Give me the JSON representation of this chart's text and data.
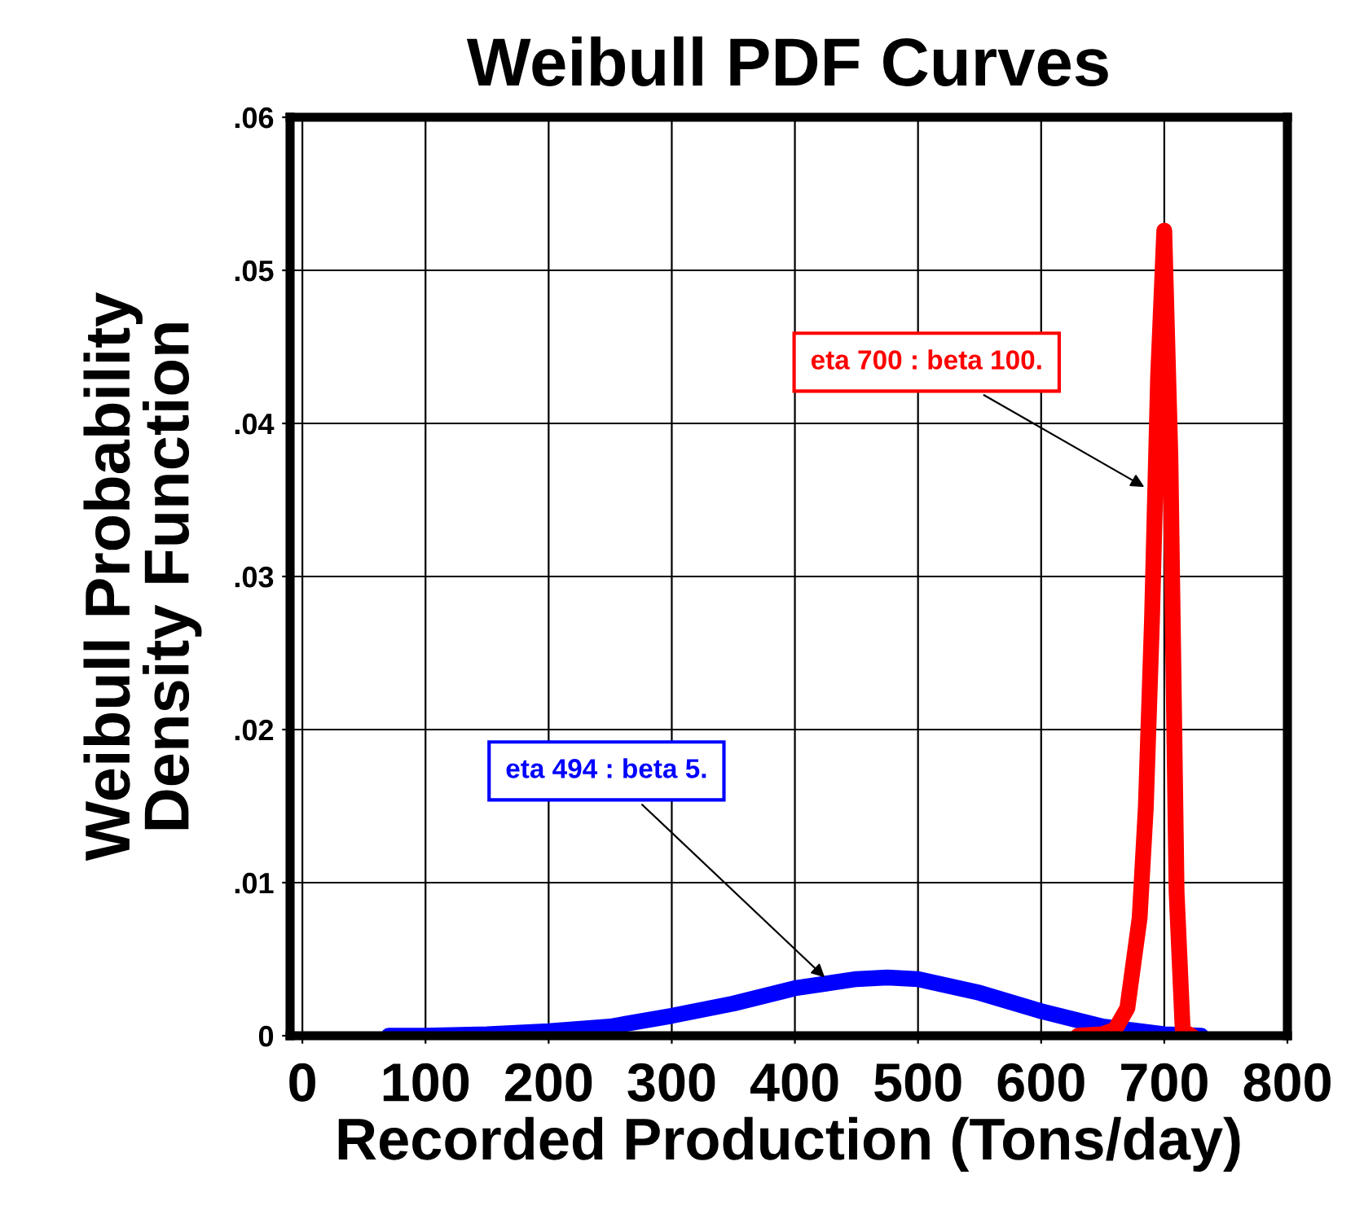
{
  "chart_data": {
    "type": "line",
    "title": "Weibull PDF Curves",
    "xlabel": "Recorded Production (Tons/day)",
    "ylabel": "Weibull Probability\nDensity Function",
    "xlim": [
      -10,
      800
    ],
    "xticks": [
      0,
      100,
      200,
      300,
      400,
      500,
      600,
      700,
      800
    ],
    "ylim": [
      0,
      0.06
    ],
    "yticks": [
      0,
      {
        "value": 0.01,
        "label": ".01"
      },
      {
        "value": 0.02,
        "label": ".02"
      },
      {
        "value": 0.03,
        "label": ".03"
      },
      {
        "value": 0.04,
        "label": ".04"
      },
      {
        "value": 0.05,
        "label": ".05"
      },
      {
        "value": 0.06,
        "label": ".06"
      }
    ],
    "grid": true,
    "marker": "none",
    "line_style": "solid",
    "series": [
      {
        "color": "#0000ff",
        "x": [
          70,
          100,
          150,
          200,
          250,
          300,
          350,
          400,
          450,
          475,
          500,
          550,
          600,
          650,
          700,
          730
        ],
        "values": [
          0.0,
          0.0,
          0.0001,
          0.0003,
          0.0006,
          0.0013,
          0.0021,
          0.0031,
          0.0037,
          0.0038,
          0.0037,
          0.0028,
          0.0016,
          0.0006,
          0.0001,
          0.0
        ]
      },
      {
        "color": "#ff0000",
        "x": [
          630,
          650,
          660,
          670,
          680,
          685,
          690,
          695,
          700,
          705,
          710,
          715,
          722
        ],
        "values": [
          0.0,
          0.0001,
          0.0004,
          0.0018,
          0.0077,
          0.0149,
          0.0271,
          0.0431,
          0.0526,
          0.0377,
          0.0094,
          0.0003,
          0.0
        ]
      }
    ],
    "annotations": [
      {
        "text": "eta 494 : beta 5.",
        "x": 427,
        "y": 0.0036
      },
      {
        "text": "eta 700 : beta 100.",
        "x": 687,
        "y": 0.0357
      }
    ]
  }
}
